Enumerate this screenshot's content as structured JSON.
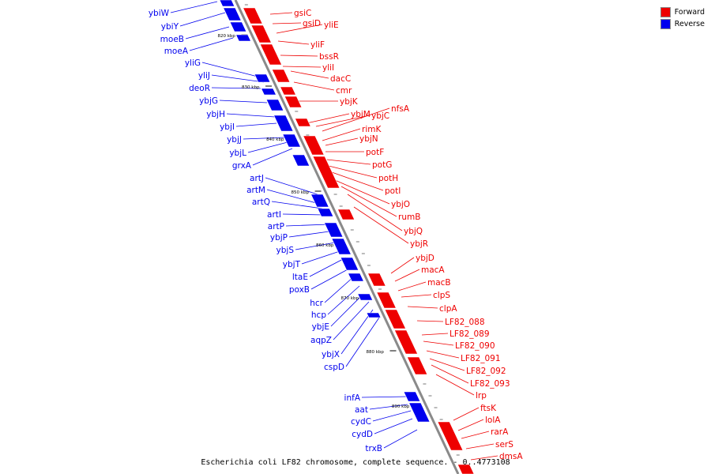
{
  "colors": {
    "forward": "#ee0000",
    "reverse": "#0000ee",
    "axis": "#888888"
  },
  "legend": [
    {
      "label": "Forward",
      "color": "#ee0000"
    },
    {
      "label": "Reverse",
      "color": "#0000ee"
    }
  ],
  "caption": "Escherichia coli LF82 chromosome, complete sequence. - 0..4773108",
  "ticks": [
    "820 kbp",
    "830 kbp",
    "840 kbp",
    "850 kbp",
    "860 kbp",
    "870 kbp",
    "880 kbp",
    "890 kbp"
  ],
  "forward_genes": [
    "gsiC",
    "gsiD",
    "yliE",
    "yliF",
    "bssR",
    "yliI",
    "dacC",
    "cmr",
    "ybjK",
    "ybjM",
    "ybjC",
    "nfsA",
    "rimK",
    "ybjN",
    "potF",
    "potG",
    "potH",
    "potI",
    "ybjO",
    "rumB",
    "ybjQ",
    "ybjR",
    "ybjD",
    "macA",
    "macB",
    "clpS",
    "clpA",
    "LF82_088",
    "LF82_089",
    "LF82_090",
    "LF82_091",
    "LF82_092",
    "LF82_093",
    "lrp",
    "ftsK",
    "lolA",
    "rarA",
    "serS",
    "dmsA"
  ],
  "reverse_genes": [
    "ybiW",
    "ybiY",
    "moeB",
    "moeA",
    "yliG",
    "yliJ",
    "deoR",
    "ybjG",
    "ybjH",
    "ybjI",
    "ybjJ",
    "ybjL",
    "grxA",
    "artJ",
    "artM",
    "artQ",
    "artI",
    "artP",
    "ybjP",
    "ybjS",
    "ybjT",
    "ltaE",
    "poxB",
    "hcr",
    "hcp",
    "ybjE",
    "aqpZ",
    "ybjX",
    "cspD",
    "infA",
    "aat",
    "cydC",
    "cydD",
    "trxB"
  ]
}
